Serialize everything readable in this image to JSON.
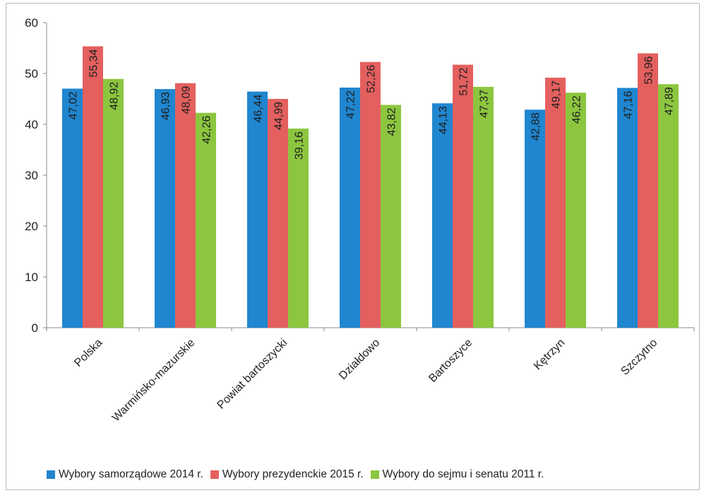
{
  "chart_data": {
    "type": "bar",
    "categories": [
      "Polska",
      "Warmińsko-mazurskie",
      "Powiat bartoszycki",
      "Działdowo",
      "Bartoszyce",
      "Kętrzyn",
      "Szczytno"
    ],
    "series": [
      {
        "name": "Wybory samorządowe 2014 r.",
        "color": "#1f86cf",
        "values": [
          47.02,
          46.93,
          46.44,
          47.22,
          44.13,
          42.88,
          47.16
        ],
        "labels": [
          "47,02",
          "46,93",
          "46,44",
          "47,22",
          "44,13",
          "42,88",
          "47,16"
        ]
      },
      {
        "name": "Wybory prezydenckie 2015 r.",
        "color": "#e4605f",
        "values": [
          55.34,
          48.09,
          44.99,
          52.26,
          51.72,
          49.17,
          53.96
        ],
        "labels": [
          "55,34",
          "48,09",
          "44,99",
          "52,26",
          "51,72",
          "49,17",
          "53,96"
        ]
      },
      {
        "name": "Wybory do sejmu i senatu 2011 r.",
        "color": "#8cc63f",
        "values": [
          48.92,
          42.26,
          39.16,
          43.82,
          47.37,
          46.22,
          47.89
        ],
        "labels": [
          "48,92",
          "42,26",
          "39,16",
          "43,82",
          "47,37",
          "46,22",
          "47,89"
        ]
      }
    ],
    "yticks": [
      "0",
      "10",
      "20",
      "30",
      "40",
      "50",
      "60"
    ],
    "ylim": [
      0,
      60
    ],
    "title": "",
    "xlabel": "",
    "ylabel": "",
    "grid": false,
    "legend_position": "bottom"
  }
}
